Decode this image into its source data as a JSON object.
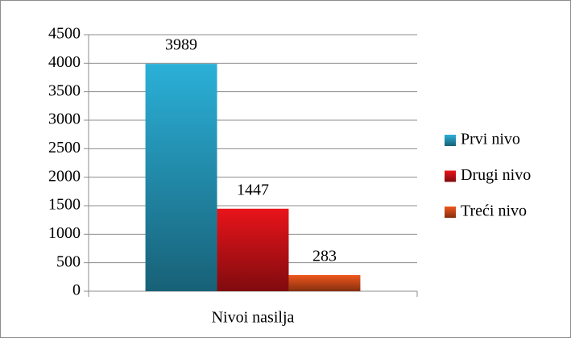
{
  "chart_data": {
    "type": "bar",
    "categories": [
      "Nivoi nasilja"
    ],
    "series": [
      {
        "name": "Prvi nivo",
        "color": "#2bb0d8",
        "values": [
          3989
        ]
      },
      {
        "name": "Drugi nivo",
        "color": "#e8141a",
        "values": [
          1447
        ]
      },
      {
        "name": "Treći nivo",
        "color": "#f0561c",
        "values": [
          283
        ]
      }
    ],
    "ylim": [
      0,
      4500
    ],
    "yticks": [
      0,
      500,
      1000,
      1500,
      2000,
      2500,
      3000,
      3500,
      4000,
      4500
    ],
    "grid": true,
    "legend": "right",
    "data_labels": true
  }
}
